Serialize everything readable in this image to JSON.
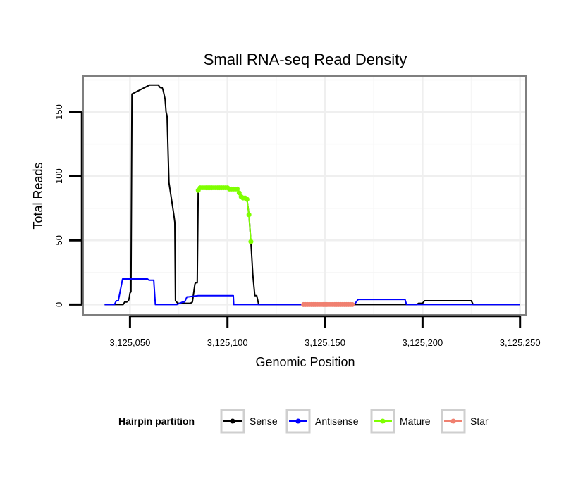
{
  "chart_data": {
    "type": "line",
    "title": "Small RNA-seq Read Density",
    "xlabel": "Genomic Position",
    "ylabel": "Total Reads",
    "xlim": [
      3125026,
      3125253
    ],
    "ylim": [
      -8,
      178
    ],
    "x_ticks": [
      3125050,
      3125100,
      3125150,
      3125200,
      3125250
    ],
    "x_tick_labels": [
      "3,125,050",
      "3,125,100",
      "3,125,150",
      "3,125,200",
      "3,125,250"
    ],
    "y_ticks": [
      0,
      50,
      100,
      150
    ],
    "y_tick_labels": [
      "0",
      "50",
      "100",
      "150"
    ],
    "grid": true,
    "legend_title": "Hairpin partition",
    "legend_position": "bottom",
    "series": [
      {
        "name": "Sense",
        "color": "#000000",
        "markers": false,
        "x": [
          3125037,
          3125046,
          3125046.5,
          3125047.3,
          3125047.6,
          3125048.3,
          3125049.2,
          3125049.6,
          3125050,
          3125050.5,
          3125051,
          3125060,
          3125060.3,
          3125064.5,
          3125065.5,
          3125066,
          3125066.5,
          3125067,
          3125068,
          3125068.5,
          3125069,
          3125070,
          3125072.5,
          3125073,
          3125073.3,
          3125074.5,
          3125075,
          3125081,
          3125082,
          3125083.3,
          3125083.6,
          3125084.5,
          3125085,
          3125086,
          3125087,
          3125088,
          3125089,
          3125090,
          3125091,
          3125092,
          3125093,
          3125094,
          3125095,
          3125096,
          3125097,
          3125098,
          3125099,
          3125100,
          3125101,
          3125102,
          3125103,
          3125104,
          3125105,
          3125106,
          3125107,
          3125108,
          3125109,
          3125110,
          3125111,
          3125112,
          3125113,
          3125114,
          3125115,
          3125116,
          3125117,
          3125120,
          3125197,
          3125198,
          3125200,
          3125201,
          3125225,
          3125226,
          3125250
        ],
        "y": [
          0,
          0,
          0,
          2,
          2,
          2,
          3,
          5,
          9,
          10,
          164,
          171,
          171,
          171,
          169,
          169,
          169,
          167,
          160,
          150,
          147,
          95,
          70,
          64,
          3,
          1,
          1,
          1,
          2,
          16,
          17,
          17,
          89,
          91,
          91,
          91,
          91,
          91,
          91,
          91,
          91,
          91,
          91,
          91,
          91,
          91,
          91,
          91,
          90,
          90,
          90,
          90,
          90,
          87,
          84,
          83,
          83,
          82,
          70,
          49,
          23,
          7,
          7,
          0,
          0,
          0,
          0,
          1,
          1,
          3,
          3,
          0,
          0
        ]
      },
      {
        "name": "Antisense",
        "color": "#0000ff",
        "markers": false,
        "x": [
          3125037,
          3125042,
          3125043,
          3125044,
          3125046.2,
          3125047,
          3125048,
          3125049.2,
          3125059,
          3125059.8,
          3125062.2,
          3125063,
          3125063.8,
          3125064.8,
          3125065.6,
          3125066.4,
          3125074,
          3125077,
          3125078,
          3125079.2,
          3125080,
          3125085,
          3125087,
          3125097,
          3125099,
          3125103,
          3125103.2,
          3125105,
          3125140,
          3125165,
          3125165.5,
          3125167,
          3125168,
          3125191,
          3125191.8,
          3125206,
          3125224.3,
          3125225,
          3125250
        ],
        "y": [
          0,
          0,
          3,
          3,
          20,
          20,
          20,
          20,
          20,
          19,
          19,
          0,
          0,
          0,
          0,
          0,
          0,
          2,
          2,
          6,
          6,
          7,
          7,
          7,
          7,
          7,
          0,
          0,
          0,
          0,
          1,
          4,
          4,
          4,
          0,
          0,
          0,
          0,
          0
        ]
      },
      {
        "name": "Mature",
        "color": "#7fff00",
        "markers": true,
        "x": [
          3125085,
          3125086,
          3125087,
          3125088,
          3125089,
          3125090,
          3125091,
          3125092,
          3125093,
          3125094,
          3125095,
          3125096,
          3125097,
          3125098,
          3125099,
          3125100,
          3125101,
          3125102,
          3125103,
          3125104,
          3125105,
          3125106,
          3125107,
          3125108,
          3125109,
          3125110,
          3125111,
          3125112
        ],
        "y": [
          89,
          91,
          91,
          91,
          91,
          91,
          91,
          91,
          91,
          91,
          91,
          91,
          91,
          91,
          91,
          91,
          90,
          90,
          90,
          90,
          90,
          87,
          84,
          83,
          83,
          82,
          70,
          49
        ]
      },
      {
        "name": "Star",
        "color": "#f08070",
        "markers": true,
        "x": [
          3125139,
          3125140,
          3125141,
          3125142,
          3125143,
          3125144,
          3125145,
          3125146,
          3125147,
          3125148,
          3125149,
          3125150,
          3125151,
          3125152,
          3125153,
          3125154,
          3125155,
          3125156,
          3125157,
          3125158,
          3125159,
          3125160,
          3125161,
          3125162,
          3125163,
          3125164
        ],
        "y": [
          0,
          0,
          0,
          0,
          0,
          0,
          0,
          0,
          0,
          0,
          0,
          0,
          0,
          0,
          0,
          0,
          0,
          0,
          0,
          0,
          0,
          0,
          0,
          0,
          0,
          0
        ]
      }
    ]
  }
}
